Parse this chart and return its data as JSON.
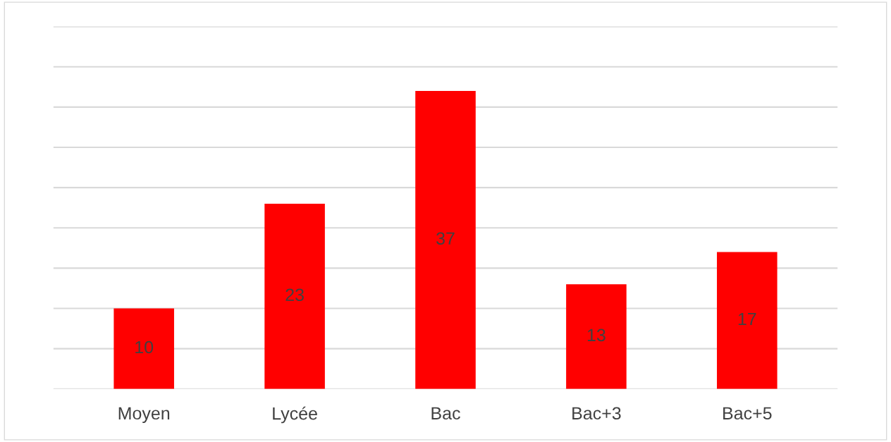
{
  "chart_data": {
    "type": "bar",
    "categories": [
      "Moyen",
      "Lycée",
      "Bac",
      "Bac+3",
      "Bac+5"
    ],
    "values": [
      10,
      23,
      37,
      13,
      17
    ],
    "color": "#ff0000",
    "data_labels": true,
    "ylim": [
      0,
      45
    ],
    "yticks": [
      {
        "value": 0,
        "label": null
      },
      {
        "value": 5,
        "label": null
      },
      {
        "value": 10,
        "label": null
      },
      {
        "value": 15,
        "label": null
      },
      {
        "value": 20,
        "label": null
      },
      {
        "value": 25,
        "label": null
      },
      {
        "value": 30,
        "label": null
      },
      {
        "value": 35,
        "label": null
      },
      {
        "value": 40,
        "label": null
      },
      {
        "value": 45,
        "label": null
      }
    ],
    "tick_labels": "x",
    "grid": "y"
  }
}
